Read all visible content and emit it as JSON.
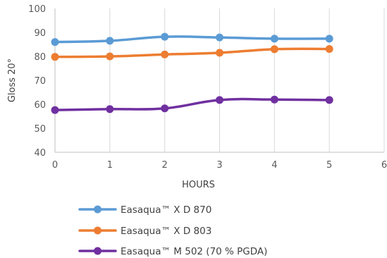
{
  "chart_data": {
    "type": "line",
    "title": "",
    "xlabel": "HOURS",
    "ylabel": "Gloss 20°",
    "xlim": [
      0,
      6
    ],
    "ylim": [
      40,
      100
    ],
    "x_ticks": [
      0,
      1,
      2,
      3,
      4,
      5,
      6
    ],
    "y_ticks": [
      40,
      50,
      60,
      70,
      80,
      90,
      100
    ],
    "grid": "vertical",
    "legend": "bottom",
    "x": [
      0,
      1,
      2,
      3,
      4,
      5
    ],
    "series": [
      {
        "name": "Easaqua™ X D 870",
        "color": "#5b9bd5",
        "values": [
          86,
          86.5,
          88.2,
          87.9,
          87.4,
          87.4
        ]
      },
      {
        "name": "Easaqua™ X D 803",
        "color": "#ed7d31",
        "values": [
          79.8,
          80,
          80.8,
          81.5,
          83,
          83.1
        ]
      },
      {
        "name": "Easaqua™ M 502 (70 % PGDA)",
        "color": "#7030a0",
        "values": [
          57.6,
          58,
          58.3,
          61.8,
          62,
          61.8
        ]
      }
    ]
  }
}
